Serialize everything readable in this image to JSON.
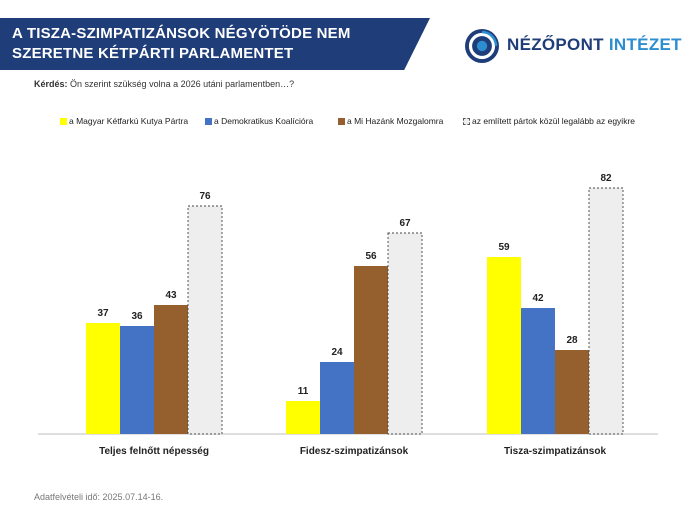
{
  "header": {
    "title": "A TISZA-SZIMPATIZÁNSOK NÉGYÖTÖDE NEM SZERETNE KÉTPÁRTI PARLAMENTET",
    "color": "#1f3d78"
  },
  "logo": {
    "icon": "nezopont-logo-icon",
    "text_part1": "NÉZŐPONT",
    "text_part2": "INTÉZET"
  },
  "question": {
    "label": "Kérdés:",
    "text": "Ön szerint szükség volna a 2026 utáni parlamentben…?"
  },
  "footer": {
    "text": "Adatfelvételi idő: 2025.07.14-16."
  },
  "chart_data": {
    "type": "bar",
    "categories": [
      "Teljes felnőtt népesség",
      "Fidesz-szimpatizánsok",
      "Tisza-szimpatizánsok"
    ],
    "series": [
      {
        "name": "a Magyar Kétfarkú Kutya Pártra",
        "values": [
          37,
          11,
          59
        ],
        "color": "#ffff00"
      },
      {
        "name": "a Demokratikus Koalícióra",
        "values": [
          36,
          24,
          42
        ],
        "color": "#4472c4"
      },
      {
        "name": "a Mi Hazánk Mozgalomra",
        "values": [
          43,
          56,
          28
        ],
        "color": "#96602e"
      },
      {
        "name": "az említett pártok közül legalább az egyikre",
        "values": [
          76,
          67,
          82
        ],
        "color": "#eeeeee",
        "dashed": true
      }
    ],
    "ylim": [
      0,
      100
    ],
    "title": "",
    "xlabel": "",
    "ylabel": "",
    "grid": false,
    "legend_position": "top"
  }
}
